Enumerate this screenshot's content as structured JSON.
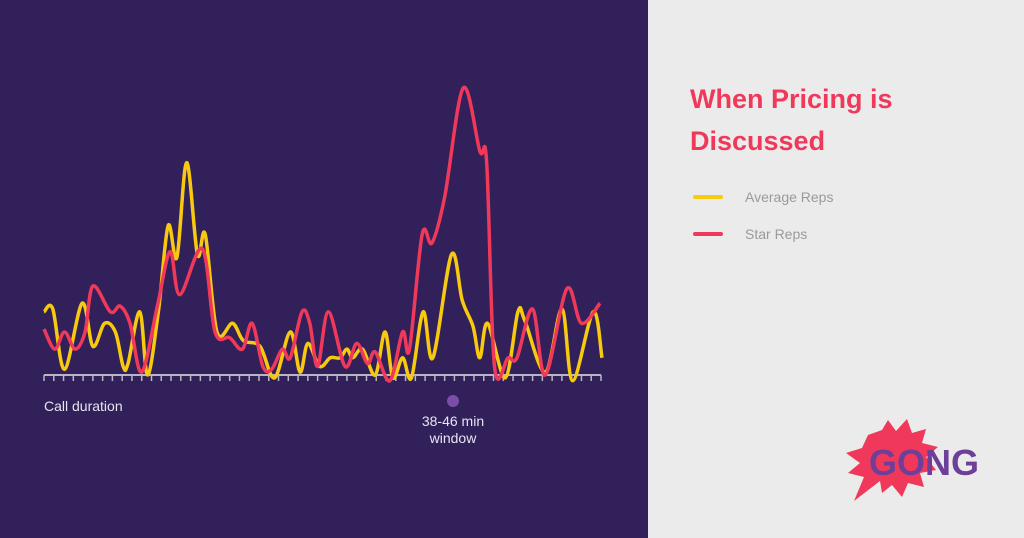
{
  "chart_data": {
    "type": "line",
    "title": "When Pricing is Discussed",
    "xlabel": "Call duration",
    "ylabel": "",
    "xlim": [
      0,
      57
    ],
    "ylim": [
      0,
      100
    ],
    "grid": false,
    "legend_placement": "right",
    "annotation": {
      "label_line1": "38-46 min",
      "label_line2": "window",
      "x": 42
    },
    "series": [
      {
        "name": "Average Reps",
        "color": "#f7c90f",
        "points": [
          [
            0,
            22
          ],
          [
            0.9,
            23
          ],
          [
            2.1,
            2
          ],
          [
            3.9,
            25
          ],
          [
            5.0,
            10
          ],
          [
            6.2,
            18
          ],
          [
            7.3,
            15
          ],
          [
            8.1,
            3
          ],
          [
            8.6,
            4
          ],
          [
            9.8,
            22
          ],
          [
            10.6,
            0
          ],
          [
            11.7,
            22
          ],
          [
            12.7,
            52
          ],
          [
            13.6,
            41
          ],
          [
            14.6,
            74
          ],
          [
            15.7,
            42
          ],
          [
            16.5,
            49
          ],
          [
            17.7,
            15
          ],
          [
            19.3,
            18
          ],
          [
            20.4,
            12
          ],
          [
            22.1,
            10
          ],
          [
            23.6,
            -1
          ],
          [
            25.2,
            15
          ],
          [
            26.2,
            1
          ],
          [
            27.0,
            11
          ],
          [
            28.2,
            3
          ],
          [
            29.3,
            6
          ],
          [
            30.3,
            6
          ],
          [
            31.0,
            9
          ],
          [
            31.6,
            6
          ],
          [
            32.6,
            9
          ],
          [
            33.9,
            0
          ],
          [
            34.9,
            15
          ],
          [
            35.7,
            -1
          ],
          [
            36.7,
            6
          ],
          [
            37.6,
            -1
          ],
          [
            38.8,
            22
          ],
          [
            39.8,
            6
          ],
          [
            41.7,
            42
          ],
          [
            42.8,
            26
          ],
          [
            43.9,
            17
          ],
          [
            44.6,
            6
          ],
          [
            45.4,
            18
          ],
          [
            47.2,
            -1
          ],
          [
            48.5,
            22
          ],
          [
            49.2,
            19
          ],
          [
            51.3,
            1
          ],
          [
            53.0,
            23
          ],
          [
            54.1,
            -2
          ],
          [
            56.2,
            22
          ],
          [
            57.1,
            6
          ]
        ]
      },
      {
        "name": "Star Reps",
        "color": "#f0395a",
        "points": [
          [
            0,
            16
          ],
          [
            1.1,
            9
          ],
          [
            2.1,
            15
          ],
          [
            3.2,
            9
          ],
          [
            4.2,
            15
          ],
          [
            5.0,
            31
          ],
          [
            6.8,
            22
          ],
          [
            7.8,
            24
          ],
          [
            8.8,
            18
          ],
          [
            10.0,
            1
          ],
          [
            11.6,
            24
          ],
          [
            12.9,
            43
          ],
          [
            13.9,
            28
          ],
          [
            16.2,
            44
          ],
          [
            17.5,
            15
          ],
          [
            19.0,
            13
          ],
          [
            20.3,
            9
          ],
          [
            21.3,
            18
          ],
          [
            22.4,
            3
          ],
          [
            23.3,
            2
          ],
          [
            24.4,
            9
          ],
          [
            25.2,
            6
          ],
          [
            26.4,
            22
          ],
          [
            27.2,
            18
          ],
          [
            28.0,
            3
          ],
          [
            29.1,
            22
          ],
          [
            30.8,
            3
          ],
          [
            32.0,
            11
          ],
          [
            33.1,
            4
          ],
          [
            33.9,
            8
          ],
          [
            35.4,
            -2
          ],
          [
            36.7,
            15
          ],
          [
            37.4,
            9
          ],
          [
            38.7,
            49
          ],
          [
            39.7,
            46
          ],
          [
            41.0,
            62
          ],
          [
            42.9,
            100
          ],
          [
            44.6,
            78
          ],
          [
            45.3,
            74
          ],
          [
            46.1,
            3
          ],
          [
            47.5,
            6
          ],
          [
            48.4,
            6
          ],
          [
            50.0,
            23
          ],
          [
            51.3,
            0
          ],
          [
            53.5,
            30
          ],
          [
            55.0,
            18
          ],
          [
            56.9,
            25
          ]
        ]
      }
    ]
  },
  "title_line1": "When Pricing is",
  "title_line2": "Discussed",
  "legend": [
    {
      "label": "Average Reps",
      "color": "#f7c90f"
    },
    {
      "label": "Star Reps",
      "color": "#f0395a"
    }
  ],
  "logo": {
    "text": "GONG",
    "brand_red": "#f0395a",
    "brand_purple": "#6e3f99"
  }
}
